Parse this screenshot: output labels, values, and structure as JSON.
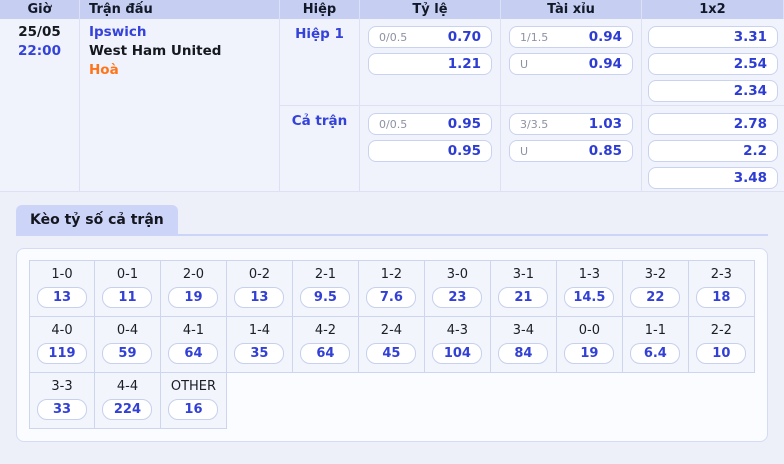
{
  "theme": {
    "header_bg": "#c6cff2",
    "row_bg": "#f0f3fc",
    "page_bg": "#edf0f9",
    "accent_blue": "#3442d9",
    "odds_blue": "#2d3cd3",
    "result_orange": "#ff7419"
  },
  "table": {
    "headers": [
      "Giờ",
      "Trận đấu",
      "Hiệp",
      "Tỷ lệ",
      "Tài xỉu",
      "1x2"
    ],
    "match": {
      "date": "25/05",
      "time": "22:00",
      "home": "Ipswich",
      "away": "West Ham United",
      "result": "Hoà"
    },
    "sections": [
      {
        "label": "Hiệp 1",
        "handicap": [
          {
            "line": "0/0.5",
            "odds": "0.70"
          },
          {
            "line": "",
            "odds": "1.21"
          }
        ],
        "overunder": [
          {
            "line": "1/1.5",
            "odds": "0.94"
          },
          {
            "line": "U",
            "odds": "0.94"
          }
        ],
        "onextwo": [
          "3.31",
          "2.54",
          "2.34"
        ]
      },
      {
        "label": "Cả trận",
        "handicap": [
          {
            "line": "0/0.5",
            "odds": "0.95"
          },
          {
            "line": "",
            "odds": "0.95"
          }
        ],
        "overunder": [
          {
            "line": "3/3.5",
            "odds": "1.03"
          },
          {
            "line": "U",
            "odds": "0.85"
          }
        ],
        "onextwo": [
          "2.78",
          "2.2",
          "3.48"
        ]
      }
    ]
  },
  "score_section": {
    "tab_label": "Kèo tỷ số cả trận",
    "rows": [
      [
        {
          "score": "1-0",
          "odds": "13"
        },
        {
          "score": "0-1",
          "odds": "11"
        },
        {
          "score": "2-0",
          "odds": "19"
        },
        {
          "score": "0-2",
          "odds": "13"
        },
        {
          "score": "2-1",
          "odds": "9.5"
        },
        {
          "score": "1-2",
          "odds": "7.6"
        },
        {
          "score": "3-0",
          "odds": "23"
        },
        {
          "score": "3-1",
          "odds": "21"
        },
        {
          "score": "1-3",
          "odds": "14.5"
        },
        {
          "score": "3-2",
          "odds": "22"
        },
        {
          "score": "2-3",
          "odds": "18"
        }
      ],
      [
        {
          "score": "4-0",
          "odds": "119"
        },
        {
          "score": "0-4",
          "odds": "59"
        },
        {
          "score": "4-1",
          "odds": "64"
        },
        {
          "score": "1-4",
          "odds": "35"
        },
        {
          "score": "4-2",
          "odds": "64"
        },
        {
          "score": "2-4",
          "odds": "45"
        },
        {
          "score": "4-3",
          "odds": "104"
        },
        {
          "score": "3-4",
          "odds": "84"
        },
        {
          "score": "0-0",
          "odds": "19"
        },
        {
          "score": "1-1",
          "odds": "6.4"
        },
        {
          "score": "2-2",
          "odds": "10"
        }
      ],
      [
        {
          "score": "3-3",
          "odds": "33"
        },
        {
          "score": "4-4",
          "odds": "224"
        },
        {
          "score": "OTHER",
          "odds": "16"
        }
      ]
    ]
  }
}
